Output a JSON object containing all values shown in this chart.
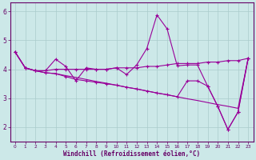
{
  "title": "",
  "xlabel": "Windchill (Refroidissement éolien,°C)",
  "ylabel": "",
  "xlim": [
    -0.5,
    23.5
  ],
  "ylim": [
    1.5,
    6.3
  ],
  "yticks": [
    2,
    3,
    4,
    5,
    6
  ],
  "xticks": [
    0,
    1,
    2,
    3,
    4,
    5,
    6,
    7,
    8,
    9,
    10,
    11,
    12,
    13,
    14,
    15,
    16,
    17,
    18,
    19,
    20,
    21,
    22,
    23
  ],
  "background_color": "#cce8e8",
  "grid_color": "#aacccc",
  "line_color": "#990099",
  "line1_x": [
    0,
    1,
    2,
    3,
    4,
    5,
    6,
    7,
    8,
    9,
    10,
    11,
    12,
    13,
    14,
    15,
    16,
    17,
    18,
    19,
    20,
    21,
    22,
    23
  ],
  "line1_y": [
    4.6,
    4.05,
    3.95,
    3.95,
    4.35,
    4.1,
    3.6,
    4.05,
    4.0,
    4.0,
    4.05,
    3.82,
    4.15,
    4.72,
    5.88,
    5.4,
    4.12,
    4.15,
    4.15,
    3.42,
    2.72,
    1.92,
    2.52,
    4.38
  ],
  "line2_x": [
    0,
    1,
    2,
    3,
    4,
    5,
    6,
    7,
    8,
    9,
    10,
    11,
    12,
    13,
    14,
    15,
    16,
    17,
    18,
    19,
    20,
    21,
    22,
    23
  ],
  "line2_y": [
    4.6,
    4.05,
    3.95,
    3.95,
    4.0,
    4.0,
    4.0,
    4.0,
    4.0,
    4.0,
    4.05,
    4.05,
    4.05,
    4.1,
    4.1,
    4.15,
    4.2,
    4.2,
    4.2,
    4.25,
    4.25,
    4.3,
    4.3,
    4.38
  ],
  "line3_x": [
    0,
    1,
    2,
    3,
    4,
    5,
    6,
    7,
    8,
    9,
    10,
    11,
    12,
    13,
    14,
    15,
    16,
    17,
    18,
    19,
    20,
    21,
    22,
    23
  ],
  "line3_y": [
    4.6,
    4.05,
    3.95,
    3.88,
    3.85,
    3.78,
    3.72,
    3.65,
    3.58,
    3.52,
    3.45,
    3.38,
    3.32,
    3.25,
    3.18,
    3.12,
    3.05,
    2.98,
    2.92,
    2.85,
    2.78,
    2.72,
    2.65,
    4.38
  ],
  "line4_x": [
    0,
    1,
    2,
    3,
    4,
    5,
    6,
    7,
    8,
    9,
    10,
    11,
    12,
    13,
    14,
    15,
    16,
    17,
    18,
    19,
    20,
    21,
    22,
    23
  ],
  "line4_y": [
    4.6,
    4.05,
    3.95,
    3.88,
    3.85,
    3.75,
    3.65,
    3.6,
    3.55,
    3.5,
    3.45,
    3.38,
    3.32,
    3.25,
    3.18,
    3.12,
    3.05,
    3.6,
    3.6,
    3.42,
    2.72,
    1.92,
    2.52,
    4.38
  ]
}
